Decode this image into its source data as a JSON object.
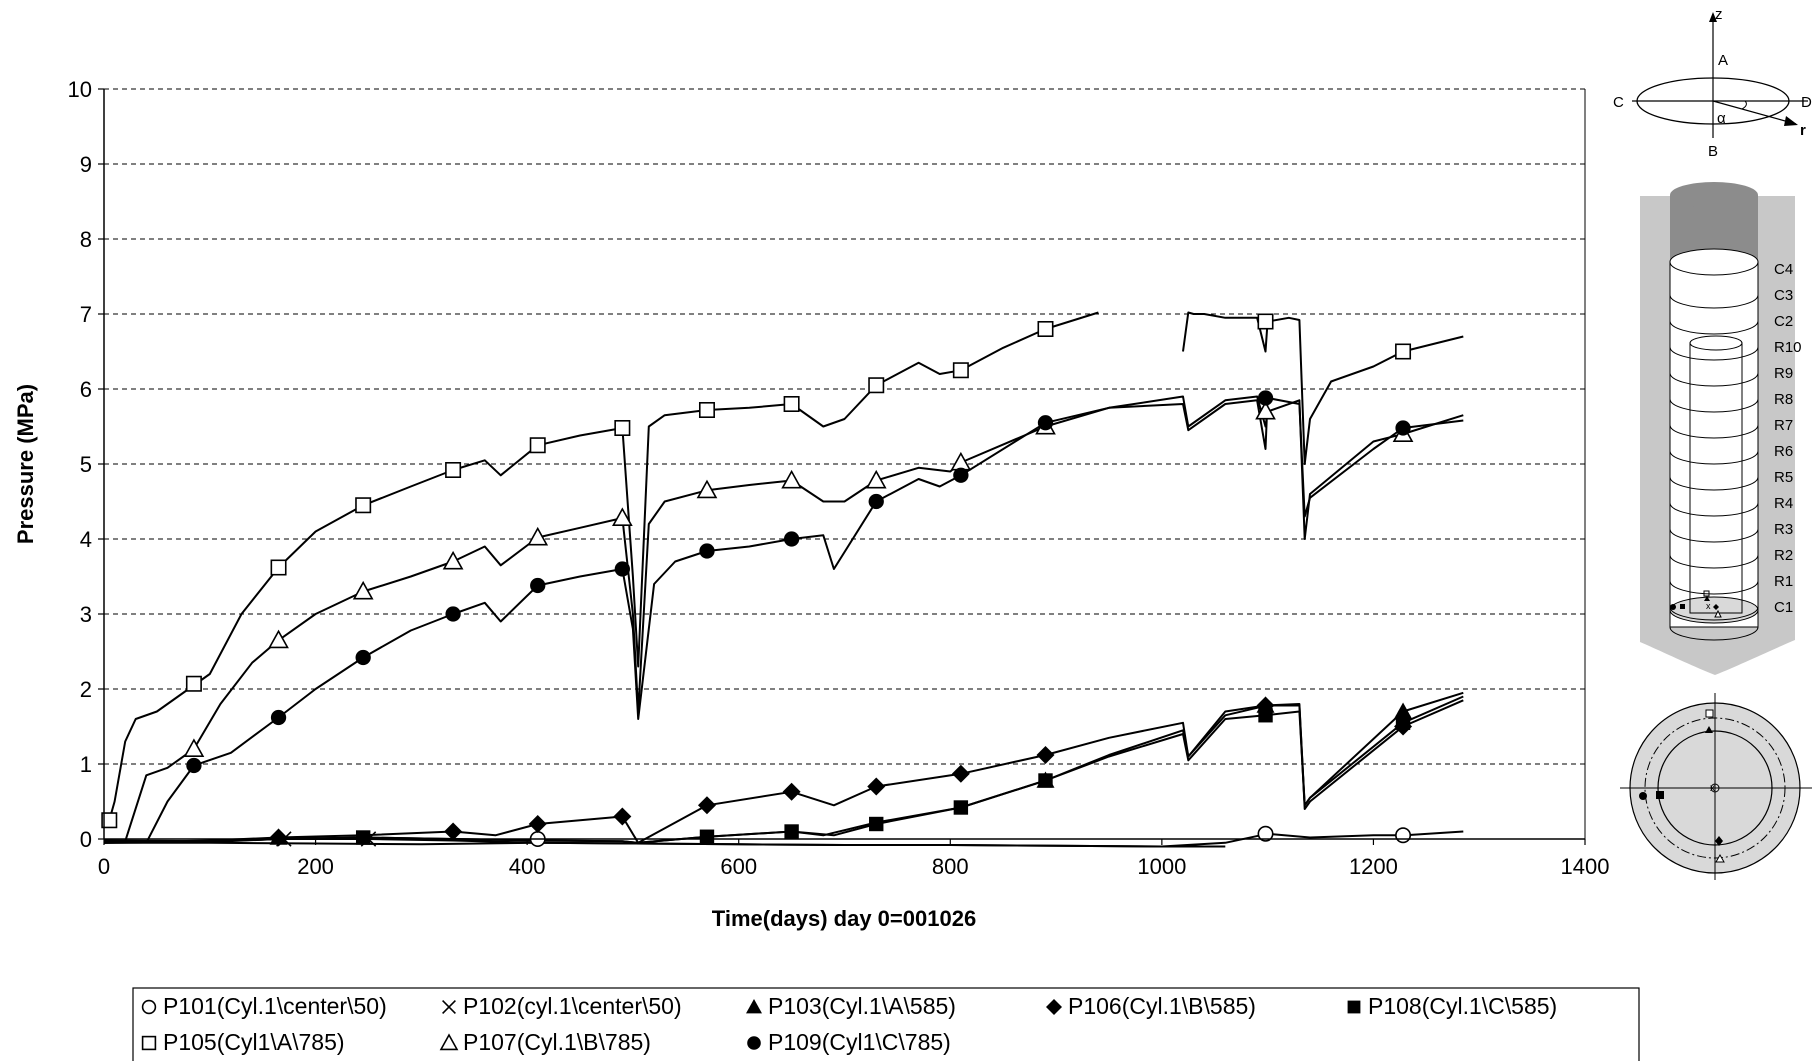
{
  "chart_data": {
    "type": "line",
    "xlabel": "Time(days)  day 0=001026",
    "ylabel": "Pressure (MPa)",
    "xlim": [
      0,
      1400
    ],
    "ylim": [
      0,
      10
    ],
    "x_ticks": [
      "0",
      "200",
      "400",
      "600",
      "800",
      "1000",
      "1200",
      "1400"
    ],
    "y_ticks": [
      "0",
      "1",
      "2",
      "3",
      "4",
      "5",
      "6",
      "7",
      "8",
      "9",
      "10"
    ],
    "grid": "horizontal dashed",
    "legend_position": "bottom",
    "series": [
      {
        "name": "P101(Cyl.1\\center\\50)",
        "marker": "open-circle",
        "x": [
          0,
          100,
          200,
          300,
          410,
          500,
          600,
          700,
          800,
          900,
          1000,
          1060,
          1100,
          1140,
          1200,
          1230,
          1285
        ],
        "y": [
          -0.05,
          -0.05,
          -0.06,
          -0.07,
          -0.05,
          -0.06,
          -0.07,
          -0.08,
          -0.08,
          -0.09,
          -0.1,
          -0.05,
          0.07,
          0.02,
          0.05,
          0.05,
          0.1
        ]
      },
      {
        "name": "P102(cyl.1\\center\\50)",
        "marker": "x",
        "x": [
          0,
          100,
          170,
          250,
          330,
          410,
          500,
          600,
          700,
          800,
          900,
          1000,
          1060
        ],
        "y": [
          -0.02,
          -0.03,
          0.0,
          0.0,
          -0.02,
          -0.05,
          -0.06,
          -0.07,
          -0.08,
          -0.08,
          -0.09,
          -0.1,
          -0.1
        ]
      },
      {
        "name": "P103(Cyl.1\\A\\585)",
        "marker": "filled-triangle",
        "x": [
          0,
          100,
          165,
          245,
          330,
          410,
          490,
          505,
          570,
          650,
          680,
          730,
          810,
          890,
          950,
          1020,
          1025,
          1060,
          1090,
          1100,
          1130,
          1135,
          1140,
          1228,
          1285
        ],
        "y": [
          -0.05,
          -0.03,
          0.0,
          0.02,
          0.0,
          -0.02,
          -0.03,
          -0.05,
          0.03,
          0.1,
          0.05,
          0.22,
          0.42,
          0.78,
          1.12,
          1.45,
          1.1,
          1.65,
          1.75,
          1.78,
          1.78,
          0.45,
          0.55,
          1.7,
          1.95
        ]
      },
      {
        "name": "P106(Cyl.1\\B\\585)",
        "marker": "filled-diamond",
        "x": [
          0,
          100,
          165,
          245,
          330,
          370,
          410,
          490,
          505,
          570,
          650,
          690,
          730,
          810,
          890,
          950,
          1020,
          1025,
          1060,
          1098,
          1130,
          1135,
          1140,
          1228,
          1285
        ],
        "y": [
          -0.05,
          -0.02,
          0.02,
          0.05,
          0.1,
          0.05,
          0.2,
          0.3,
          -0.05,
          0.45,
          0.63,
          0.45,
          0.7,
          0.87,
          1.12,
          1.35,
          1.55,
          1.1,
          1.7,
          1.78,
          1.8,
          0.4,
          0.5,
          1.5,
          1.85
        ]
      },
      {
        "name": "P108(Cyl.1\\C\\585)",
        "marker": "filled-square",
        "x": [
          0,
          100,
          165,
          245,
          330,
          410,
          490,
          505,
          570,
          650,
          690,
          730,
          810,
          890,
          950,
          1020,
          1025,
          1060,
          1098,
          1130,
          1135,
          1140,
          1228,
          1285
        ],
        "y": [
          -0.05,
          -0.04,
          0.0,
          0.02,
          0.0,
          -0.02,
          -0.03,
          -0.05,
          0.03,
          0.1,
          0.05,
          0.2,
          0.42,
          0.78,
          1.1,
          1.4,
          1.05,
          1.6,
          1.65,
          1.7,
          0.45,
          0.55,
          1.55,
          1.9
        ]
      },
      {
        "name": "P105(Cyl1\\A\\785)",
        "marker": "open-square",
        "x": [
          5,
          10,
          20,
          30,
          50,
          80,
          100,
          130,
          165,
          200,
          245,
          290,
          330,
          360,
          375,
          410,
          450,
          490,
          500,
          505,
          515,
          530,
          570,
          610,
          650,
          680,
          700,
          730,
          770,
          790,
          810,
          850,
          890,
          940
        ],
        "y": [
          0.25,
          0.5,
          1.3,
          1.6,
          1.7,
          2.0,
          2.2,
          3.0,
          3.62,
          4.1,
          4.45,
          4.7,
          4.92,
          5.05,
          4.85,
          5.25,
          5.38,
          5.48,
          3.5,
          2.3,
          5.5,
          5.65,
          5.72,
          5.75,
          5.8,
          5.5,
          5.6,
          6.05,
          6.35,
          6.2,
          6.25,
          6.55,
          6.8,
          7.02
        ]
      },
      {
        "name": "P105(Cyl1\\A\\785) late",
        "marker": "open-square",
        "x": [
          1020,
          1025,
          1030,
          1040,
          1060,
          1090,
          1098,
          1100,
          1120,
          1130,
          1135,
          1140,
          1160,
          1200,
          1228,
          1285
        ],
        "y": [
          6.5,
          7.02,
          7.0,
          7.0,
          6.95,
          6.95,
          6.5,
          6.9,
          6.95,
          6.92,
          5.0,
          5.6,
          6.1,
          6.3,
          6.5,
          6.7
        ]
      },
      {
        "name": "P107(Cyl.1\\B\\785)",
        "marker": "open-triangle",
        "x": [
          0,
          20,
          40,
          60,
          85,
          110,
          140,
          165,
          200,
          245,
          290,
          330,
          360,
          375,
          410,
          450,
          490,
          500,
          505,
          515,
          530,
          570,
          610,
          650,
          680,
          700,
          730,
          770,
          800,
          810,
          890,
          950,
          1020,
          1025,
          1060,
          1090,
          1098,
          1100,
          1130,
          1135,
          1140,
          1200,
          1228,
          1285
        ],
        "y": [
          -0.05,
          -0.03,
          0.85,
          0.95,
          1.2,
          1.8,
          2.35,
          2.65,
          3.0,
          3.3,
          3.5,
          3.7,
          3.9,
          3.65,
          4.02,
          4.15,
          4.28,
          3.0,
          1.7,
          4.2,
          4.5,
          4.65,
          4.72,
          4.78,
          4.5,
          4.5,
          4.78,
          4.95,
          4.9,
          5.02,
          5.5,
          5.75,
          5.9,
          5.5,
          5.85,
          5.9,
          5.5,
          5.7,
          5.85,
          4.0,
          4.6,
          5.3,
          5.4,
          5.65
        ]
      },
      {
        "name": "P109(Cyl1\\C\\785)",
        "marker": "filled-circle",
        "x": [
          40,
          60,
          85,
          120,
          165,
          200,
          245,
          290,
          330,
          360,
          375,
          410,
          450,
          490,
          500,
          505,
          520,
          540,
          570,
          610,
          650,
          680,
          690,
          730,
          770,
          790,
          810,
          890,
          950,
          1020,
          1025,
          1060,
          1090,
          1098,
          1100,
          1130,
          1135,
          1140,
          1200,
          1228,
          1285
        ],
        "y": [
          -0.05,
          0.5,
          0.98,
          1.15,
          1.62,
          2.0,
          2.42,
          2.78,
          3.0,
          3.15,
          2.9,
          3.38,
          3.5,
          3.6,
          2.8,
          1.6,
          3.4,
          3.7,
          3.84,
          3.9,
          4.0,
          4.05,
          3.6,
          4.5,
          4.8,
          4.7,
          4.85,
          5.55,
          5.75,
          5.8,
          5.45,
          5.8,
          5.85,
          5.2,
          5.88,
          5.8,
          4.3,
          4.55,
          5.2,
          5.48,
          5.58
        ]
      }
    ]
  },
  "marker_points": {
    "P101": [
      [
        410,
        0
      ],
      [
        1098,
        0.07
      ],
      [
        1228,
        0.05
      ]
    ],
    "P102": [
      [
        170,
        0
      ],
      [
        250,
        0
      ]
    ],
    "P103": [
      [
        165,
        0.02
      ],
      [
        890,
        0.78
      ],
      [
        1098,
        1.78
      ],
      [
        1228,
        1.7
      ]
    ],
    "P106": [
      [
        165,
        0.02
      ],
      [
        330,
        0.1
      ],
      [
        410,
        0.2
      ],
      [
        490,
        0.3
      ],
      [
        570,
        0.45
      ],
      [
        650,
        0.63
      ],
      [
        730,
        0.7
      ],
      [
        810,
        0.87
      ],
      [
        890,
        1.12
      ],
      [
        1098,
        1.78
      ],
      [
        1228,
        1.5
      ]
    ],
    "P108": [
      [
        245,
        0.02
      ],
      [
        570,
        0.03
      ],
      [
        650,
        0.1
      ],
      [
        730,
        0.2
      ],
      [
        810,
        0.42
      ],
      [
        890,
        0.78
      ],
      [
        1098,
        1.65
      ],
      [
        1228,
        1.55
      ]
    ],
    "P105": [
      [
        5,
        0.25
      ],
      [
        85,
        2.07
      ],
      [
        165,
        3.62
      ],
      [
        245,
        4.45
      ],
      [
        330,
        4.92
      ],
      [
        410,
        5.25
      ],
      [
        490,
        5.48
      ],
      [
        570,
        5.72
      ],
      [
        650,
        5.8
      ],
      [
        730,
        6.05
      ],
      [
        810,
        6.25
      ],
      [
        890,
        6.8
      ],
      [
        1098,
        6.9
      ],
      [
        1228,
        6.5
      ]
    ],
    "P107": [
      [
        85,
        1.2
      ],
      [
        165,
        2.65
      ],
      [
        245,
        3.3
      ],
      [
        330,
        3.7
      ],
      [
        410,
        4.02
      ],
      [
        490,
        4.28
      ],
      [
        570,
        4.65
      ],
      [
        650,
        4.78
      ],
      [
        730,
        4.78
      ],
      [
        810,
        5.02
      ],
      [
        890,
        5.5
      ],
      [
        1098,
        5.7
      ],
      [
        1228,
        5.4
      ]
    ],
    "P109": [
      [
        85,
        0.98
      ],
      [
        165,
        1.62
      ],
      [
        245,
        2.42
      ],
      [
        330,
        3.0
      ],
      [
        410,
        3.38
      ],
      [
        490,
        3.6
      ],
      [
        570,
        3.84
      ],
      [
        650,
        4.0
      ],
      [
        730,
        4.5
      ],
      [
        810,
        4.85
      ],
      [
        890,
        5.55
      ],
      [
        1098,
        5.88
      ],
      [
        1228,
        5.48
      ]
    ]
  },
  "legend": [
    {
      "marker": "open-circle",
      "label": "P101(Cyl.1\\center\\50)"
    },
    {
      "marker": "x",
      "label": "P102(cyl.1\\center\\50)"
    },
    {
      "marker": "filled-triangle",
      "label": "P103(Cyl.1\\A\\585)"
    },
    {
      "marker": "filled-diamond",
      "label": "P106(Cyl.1\\B\\585)"
    },
    {
      "marker": "filled-square",
      "label": "P108(Cyl.1\\C\\585)"
    },
    {
      "marker": "open-square",
      "label": "P105(Cyl1\\A\\785)"
    },
    {
      "marker": "open-triangle",
      "label": "P107(Cyl.1\\B\\785)"
    },
    {
      "marker": "filled-circle",
      "label": "P109(Cyl1\\C\\785)"
    }
  ],
  "diagram": {
    "axis_z": "z",
    "axis_r": "r",
    "angle": "α",
    "points": [
      "A",
      "B",
      "C",
      "D"
    ],
    "rings": [
      "C4",
      "C3",
      "C2",
      "R10",
      "R9",
      "R8",
      "R7",
      "R6",
      "R5",
      "R4",
      "R3",
      "R2",
      "R1",
      "C1"
    ]
  },
  "colors": {
    "line": "#000000",
    "grid": "#000000",
    "background": "#ffffff",
    "borehole_fill": "#c8c8c8",
    "plug_fill": "#8c8c8c"
  }
}
